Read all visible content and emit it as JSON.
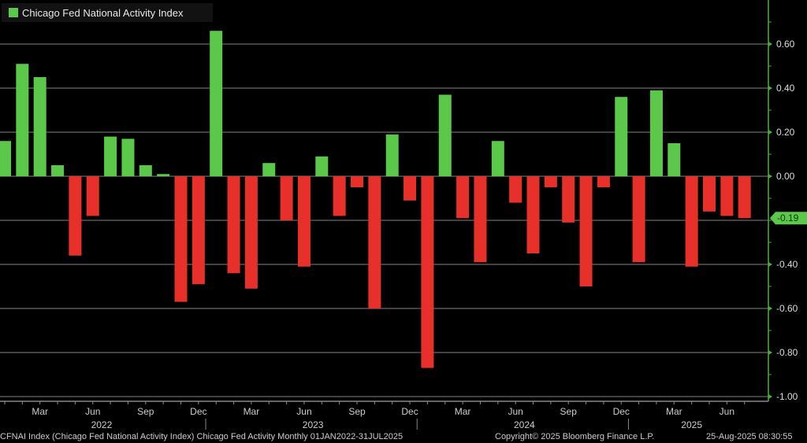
{
  "chart_data": {
    "type": "bar",
    "legend": {
      "label": "Chicago Fed National Activity Index",
      "position": "top-left"
    },
    "categories": [
      "Jan 2022",
      "Feb 2022",
      "Mar 2022",
      "Apr 2022",
      "May 2022",
      "Jun 2022",
      "Jul 2022",
      "Aug 2022",
      "Sep 2022",
      "Oct 2022",
      "Nov 2022",
      "Dec 2022",
      "Jan 2023",
      "Feb 2023",
      "Mar 2023",
      "Apr 2023",
      "May 2023",
      "Jun 2023",
      "Jul 2023",
      "Aug 2023",
      "Sep 2023",
      "Oct 2023",
      "Nov 2023",
      "Dec 2023",
      "Jan 2024",
      "Feb 2024",
      "Mar 2024",
      "Apr 2024",
      "May 2024",
      "Jun 2024",
      "Jul 2024",
      "Aug 2024",
      "Sep 2024",
      "Oct 2024",
      "Nov 2024",
      "Dec 2024",
      "Jan 2025",
      "Feb 2025",
      "Mar 2025",
      "Apr 2025",
      "May 2025",
      "Jun 2025",
      "Jul 2025"
    ],
    "values": [
      0.16,
      0.51,
      0.45,
      0.05,
      -0.36,
      -0.18,
      0.18,
      0.17,
      0.05,
      0.01,
      -0.57,
      -0.49,
      0.66,
      -0.44,
      -0.51,
      0.06,
      -0.2,
      -0.41,
      0.09,
      -0.18,
      -0.05,
      -0.6,
      0.19,
      -0.11,
      -0.87,
      0.37,
      -0.19,
      -0.39,
      0.16,
      -0.12,
      -0.35,
      -0.05,
      -0.21,
      -0.5,
      -0.05,
      0.36,
      -0.39,
      0.39,
      0.15,
      -0.41,
      -0.16,
      -0.18,
      -0.19
    ],
    "ylim": [
      -1.0,
      0.75
    ],
    "y_ticks": [
      "0.60",
      "0.40",
      "0.20",
      "0.00",
      "-0.40",
      "-0.60",
      "-0.80",
      "-1.00"
    ],
    "y_tick_values": [
      0.6,
      0.4,
      0.2,
      0.0,
      -0.4,
      -0.6,
      -0.8,
      -1.0
    ],
    "x_month_labels": [
      {
        "label": "Mar",
        "index": 2
      },
      {
        "label": "Jun",
        "index": 5
      },
      {
        "label": "Sep",
        "index": 8
      },
      {
        "label": "Dec",
        "index": 11
      },
      {
        "label": "Mar",
        "index": 14
      },
      {
        "label": "Jun",
        "index": 17
      },
      {
        "label": "Sep",
        "index": 20
      },
      {
        "label": "Dec",
        "index": 23
      },
      {
        "label": "Mar",
        "index": 26
      },
      {
        "label": "Jun",
        "index": 29
      },
      {
        "label": "Sep",
        "index": 32
      },
      {
        "label": "Dec",
        "index": 35
      },
      {
        "label": "Mar",
        "index": 38
      },
      {
        "label": "Jun",
        "index": 41
      }
    ],
    "x_year_labels": [
      {
        "label": "2022",
        "index": 5.5
      },
      {
        "label": "2023",
        "index": 17.5
      },
      {
        "label": "2024",
        "index": 29.5
      },
      {
        "label": "2025",
        "index": 39
      }
    ],
    "last_value_label": "-0.19",
    "grid": true,
    "colors": {
      "positive": "#5cc84a",
      "negative": "#e8302a",
      "axis": "#4caf3c",
      "grid": "#555555",
      "background": "#000000"
    }
  },
  "footer": {
    "description": "CFNAI Index (Chicago Fed National Activity Index) Chicago Fed Activity  Monthly 01JAN2022-31JUL2025",
    "copyright": "Copyright© 2025 Bloomberg Finance L.P.",
    "timestamp": "25-Aug-2025 08:30:55"
  }
}
